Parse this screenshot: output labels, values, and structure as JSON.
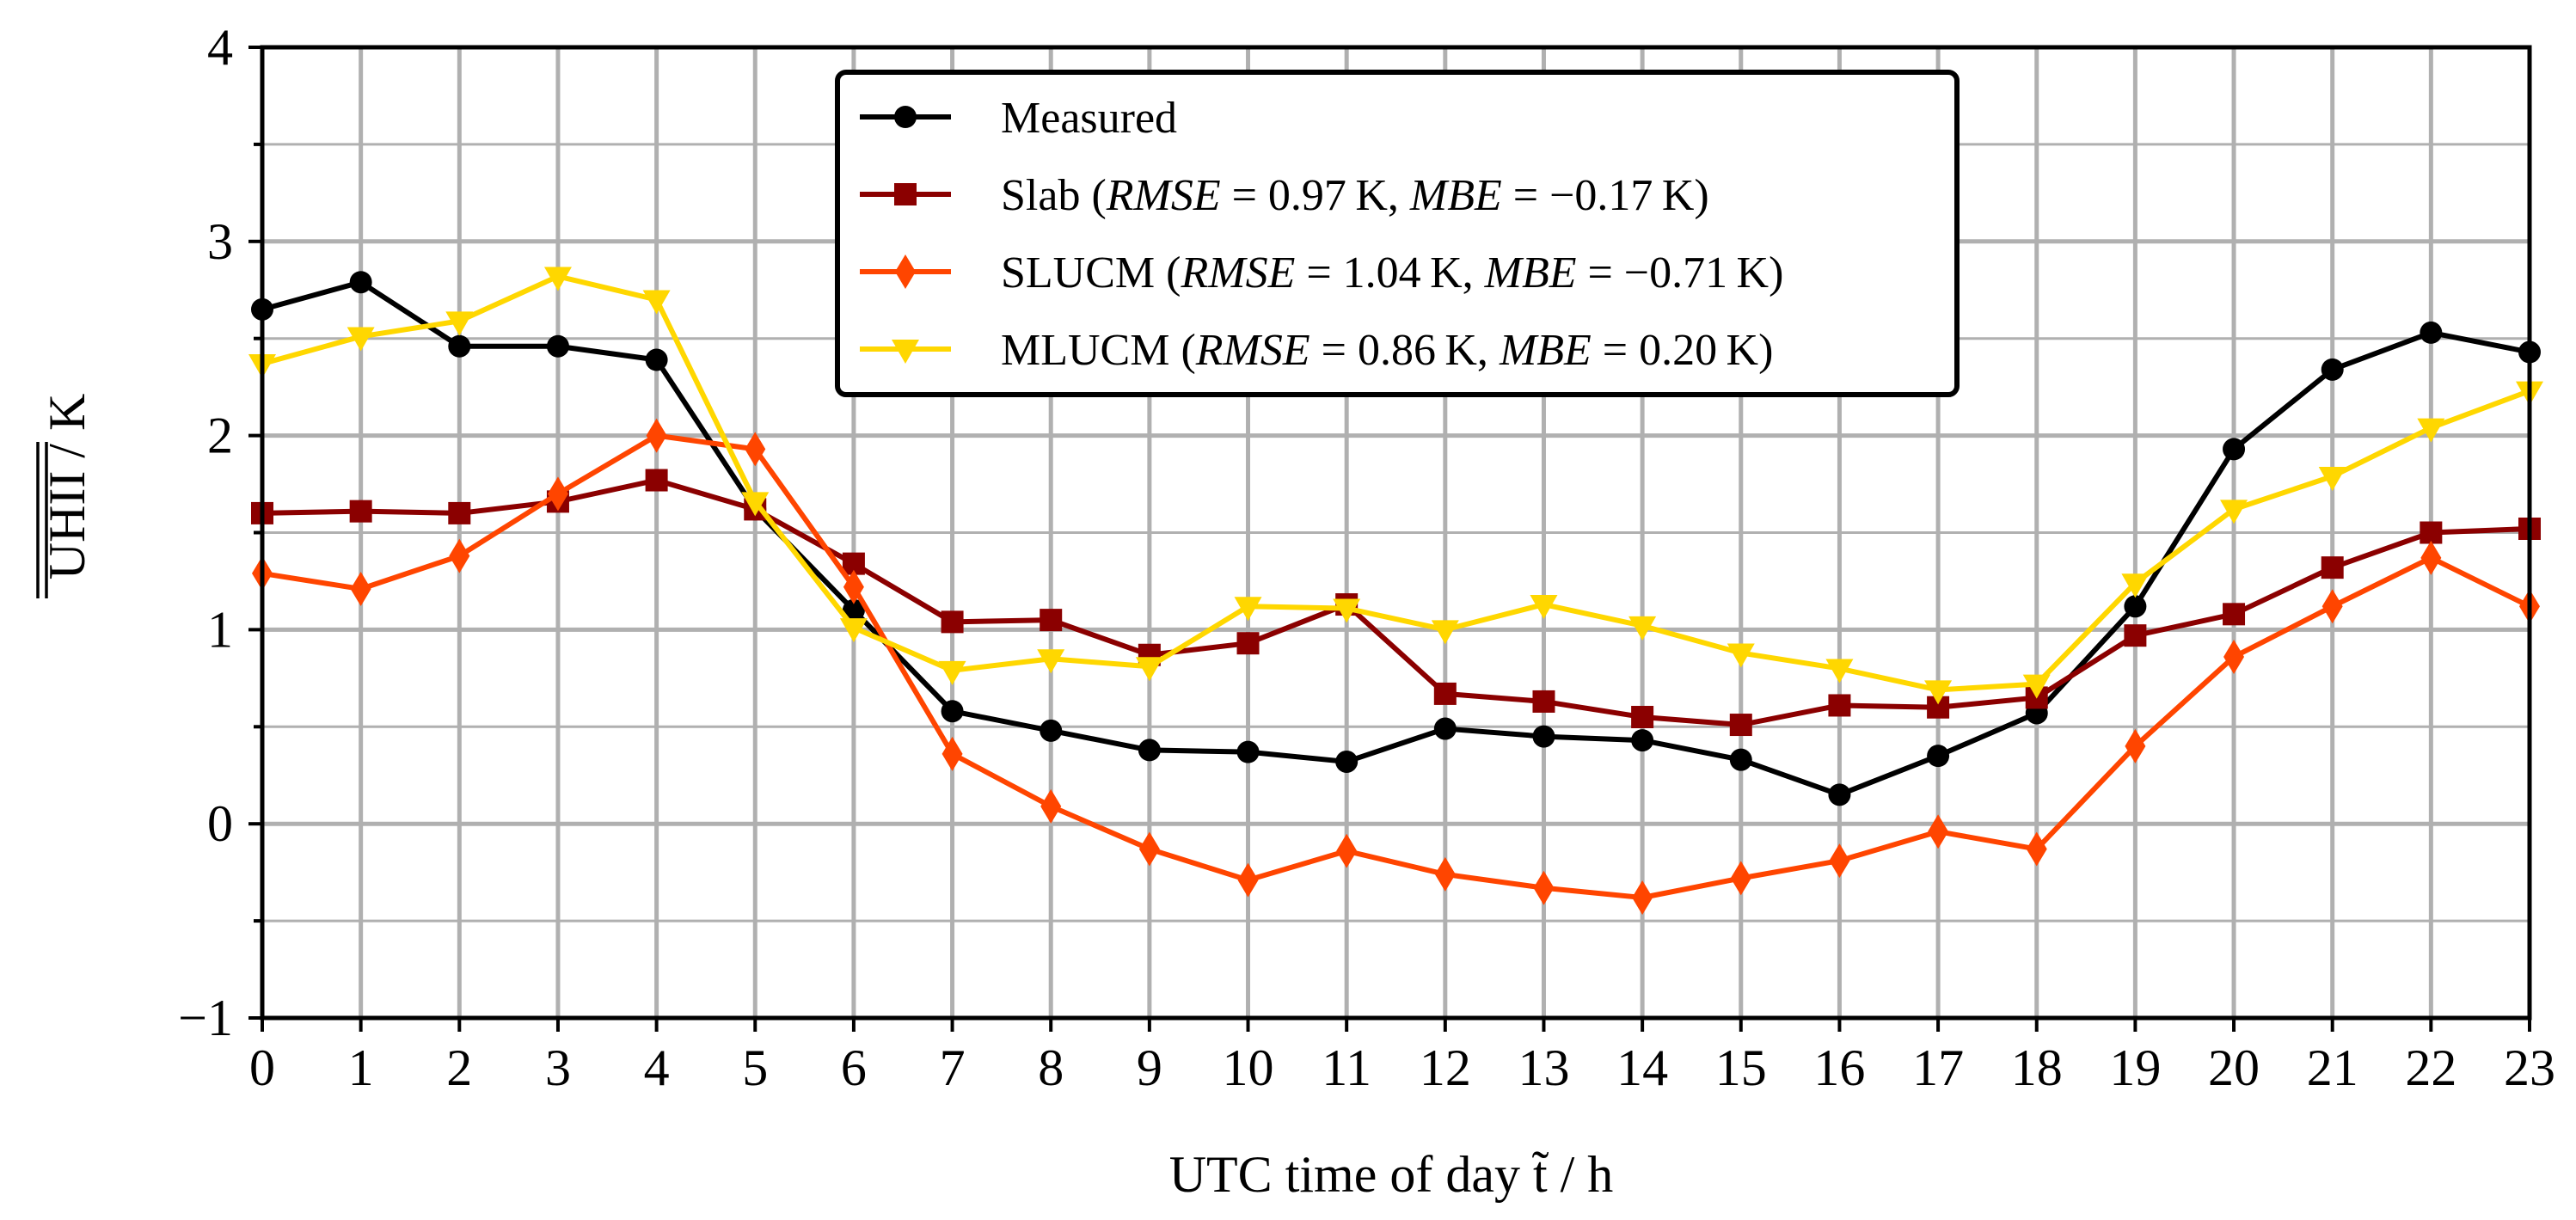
{
  "chart_data": {
    "type": "line",
    "xlabel": "UTC time of day t̃ / h",
    "ylabel": "UHII / K",
    "xlim": [
      0,
      23
    ],
    "ylim": [
      -1,
      4
    ],
    "grid": true,
    "legend_position": "top-center",
    "x": [
      0,
      1,
      2,
      3,
      4,
      5,
      6,
      7,
      8,
      9,
      10,
      11,
      12,
      13,
      14,
      15,
      16,
      17,
      18,
      19,
      20,
      21,
      22,
      23
    ],
    "xticks": [
      "0",
      "1",
      "2",
      "3",
      "4",
      "5",
      "6",
      "7",
      "8",
      "9",
      "10",
      "11",
      "12",
      "13",
      "14",
      "15",
      "16",
      "17",
      "18",
      "19",
      "20",
      "21",
      "22",
      "23"
    ],
    "yticks": [
      "−1",
      "0",
      "1",
      "2",
      "3",
      "4"
    ],
    "series": [
      {
        "name": "Measured",
        "label_plain": "Measured",
        "marker": "circle",
        "color": "#000000",
        "values": [
          2.65,
          2.79,
          2.46,
          2.46,
          2.39,
          1.62,
          1.1,
          0.58,
          0.48,
          0.38,
          0.37,
          0.32,
          0.49,
          0.45,
          0.43,
          0.33,
          0.15,
          0.35,
          0.57,
          1.12,
          1.93,
          2.34,
          2.53,
          2.43
        ]
      },
      {
        "name": "Slab",
        "label_prefix": "Slab (",
        "rmse": "0.97",
        "mbe": "−0.17",
        "marker": "square",
        "color": "#8b0000",
        "values": [
          1.6,
          1.61,
          1.6,
          1.66,
          1.77,
          1.62,
          1.34,
          1.04,
          1.05,
          0.87,
          0.93,
          1.13,
          0.67,
          0.63,
          0.55,
          0.51,
          0.61,
          0.6,
          0.65,
          0.97,
          1.08,
          1.32,
          1.5,
          1.52
        ]
      },
      {
        "name": "SLUCM",
        "label_prefix": "SLUCM (",
        "rmse": "1.04",
        "mbe": "−0.71",
        "marker": "diamond",
        "color": "#ff4500",
        "values": [
          1.29,
          1.21,
          1.38,
          1.7,
          2.0,
          1.93,
          1.22,
          0.36,
          0.09,
          -0.13,
          -0.29,
          -0.14,
          -0.26,
          -0.33,
          -0.38,
          -0.28,
          -0.19,
          -0.04,
          -0.13,
          0.4,
          0.86,
          1.12,
          1.37,
          1.12
        ]
      },
      {
        "name": "MLUCM",
        "label_prefix": "MLUCM (",
        "rmse": "0.86",
        "mbe": "0.20",
        "marker": "triangle-down",
        "color": "#ffd700",
        "values": [
          2.37,
          2.51,
          2.59,
          2.82,
          2.7,
          1.66,
          1.01,
          0.79,
          0.85,
          0.81,
          1.12,
          1.11,
          1.0,
          1.13,
          1.02,
          0.88,
          0.8,
          0.69,
          0.72,
          1.24,
          1.62,
          1.79,
          2.04,
          2.23
        ]
      }
    ],
    "legend_tokens": {
      "rmse": "RMSE",
      "mbe": "MBE",
      "eq": " = ",
      "unit": " K",
      "sep": ", ",
      "close": ")"
    }
  }
}
